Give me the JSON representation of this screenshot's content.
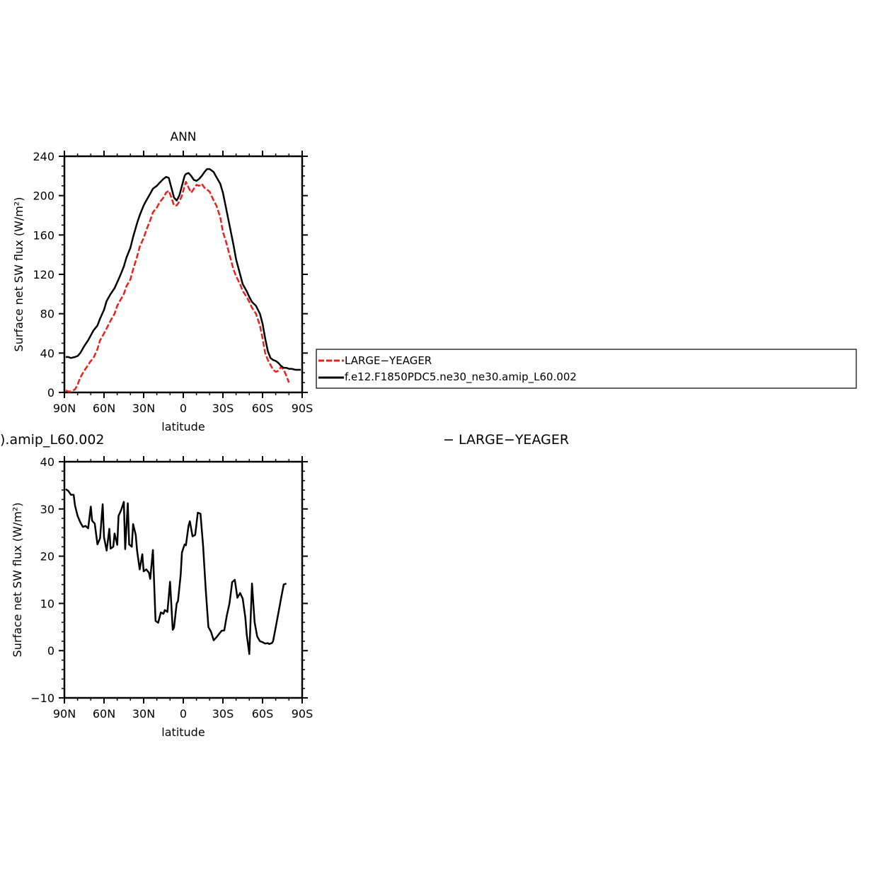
{
  "chart_data": [
    {
      "type": "line",
      "title": "ANN",
      "xlabel": "latitude",
      "ylabel": "Surface net SW flux (W/m²)",
      "xlim": [
        90,
        -90
      ],
      "ylim": [
        0,
        240
      ],
      "x_ticks": [
        90,
        60,
        30,
        0,
        -30,
        -60,
        -90
      ],
      "x_tick_labels": [
        "90N",
        "60N",
        "30N",
        "0",
        "30S",
        "60S",
        "90S"
      ],
      "y_ticks": [
        0,
        40,
        80,
        120,
        160,
        200,
        240
      ],
      "y_tick_labels": [
        "0",
        "40",
        "80",
        "120",
        "160",
        "200",
        "240"
      ],
      "legend": {
        "placement": "right",
        "entries": [
          "LARGE−YEAGER",
          "f.e12.F1850PDC5.ne30_ne30.amip_L60.002"
        ]
      },
      "series": [
        {
          "name": "LARGE−YEAGER",
          "color": "#e8201e",
          "dash": true,
          "x": [
            89,
            87,
            85,
            82,
            80,
            78,
            75,
            72,
            70,
            68,
            65,
            63,
            60,
            58,
            55,
            52,
            50,
            48,
            45,
            43,
            40,
            38,
            35,
            33,
            30,
            28,
            25,
            23,
            20,
            18,
            15,
            13,
            11,
            9,
            7,
            5,
            3,
            1,
            -1,
            -2,
            -4,
            -6,
            -8,
            -10,
            -12,
            -14,
            -16,
            -18,
            -20,
            -23,
            -25,
            -28,
            -30,
            -32,
            -35,
            -38,
            -40,
            -43,
            -45,
            -48,
            -50,
            -52,
            -55,
            -58,
            -60,
            -62,
            -64,
            -66,
            -68,
            -70,
            -72,
            -74,
            -76,
            -78,
            -80
          ],
          "y": [
            2,
            1,
            1,
            3,
            8,
            15,
            22,
            28,
            32,
            35,
            44,
            53,
            60,
            65,
            73,
            80,
            88,
            93,
            100,
            108,
            115,
            125,
            138,
            148,
            157,
            165,
            175,
            183,
            188,
            193,
            198,
            203,
            205,
            198,
            190,
            190,
            194,
            200,
            210,
            214,
            208,
            203,
            207,
            211,
            210,
            212,
            208,
            206,
            204,
            195,
            190,
            178,
            163,
            155,
            140,
            125,
            118,
            110,
            103,
            97,
            92,
            86,
            80,
            68,
            55,
            40,
            33,
            28,
            23,
            21,
            22,
            26,
            23,
            17,
            10
          ]
        },
        {
          "name": "f.e12.F1850PDC5.ne30_ne30.amip_L60.002",
          "color": "#000000",
          "dash": false,
          "x": [
            89,
            87,
            85,
            82,
            80,
            78,
            75,
            72,
            70,
            68,
            65,
            63,
            60,
            58,
            55,
            52,
            50,
            48,
            45,
            43,
            40,
            38,
            35,
            33,
            30,
            28,
            25,
            23,
            20,
            18,
            15,
            13,
            11,
            9,
            7,
            5,
            3,
            1,
            -1,
            -2,
            -4,
            -6,
            -8,
            -10,
            -12,
            -14,
            -16,
            -18,
            -20,
            -23,
            -25,
            -28,
            -30,
            -32,
            -35,
            -38,
            -40,
            -43,
            -45,
            -48,
            -50,
            -52,
            -55,
            -58,
            -60,
            -62,
            -64,
            -66,
            -68,
            -70,
            -72,
            -74,
            -76,
            -78,
            -80,
            -82,
            -85,
            -89
          ],
          "y": [
            36,
            36,
            35,
            36,
            37,
            40,
            47,
            53,
            58,
            63,
            68,
            75,
            84,
            93,
            100,
            106,
            112,
            118,
            128,
            137,
            147,
            158,
            172,
            180,
            190,
            195,
            202,
            207,
            210,
            213,
            217,
            219,
            218,
            208,
            198,
            195,
            200,
            210,
            220,
            222,
            223,
            220,
            216,
            215,
            217,
            220,
            224,
            227,
            227,
            224,
            219,
            212,
            203,
            190,
            170,
            150,
            135,
            120,
            110,
            103,
            97,
            92,
            88,
            80,
            70,
            55,
            42,
            35,
            33,
            32,
            30,
            27,
            25,
            25,
            24,
            24,
            23,
            23
          ]
        }
      ]
    },
    {
      "type": "line",
      "title": ").amip_L60.002",
      "subtitle": "− LARGE−YEAGER",
      "xlabel": "latitude",
      "ylabel": "Surface net SW flux (W/m²)",
      "xlim": [
        90,
        -90
      ],
      "ylim": [
        -10,
        40
      ],
      "x_ticks": [
        90,
        60,
        30,
        0,
        -30,
        -60,
        -90
      ],
      "x_tick_labels": [
        "90N",
        "60N",
        "30N",
        "0",
        "30S",
        "60S",
        "90S"
      ],
      "y_ticks": [
        -10,
        0,
        10,
        20,
        30,
        40
      ],
      "y_tick_labels": [
        "−10",
        "0",
        "10",
        "20",
        "30",
        "40"
      ],
      "series": [
        {
          "color": "#000000",
          "dash": false,
          "x": [
            89,
            87,
            85,
            83,
            82,
            80,
            78,
            76,
            74,
            72,
            70,
            69,
            67,
            65,
            63,
            61,
            60,
            58,
            56,
            55,
            53,
            52,
            50,
            49,
            47,
            45,
            44,
            42,
            41,
            39,
            38,
            36,
            35,
            33,
            31,
            30,
            28,
            26,
            25,
            23,
            21,
            19,
            17,
            15,
            14,
            12,
            10,
            8,
            7,
            5,
            4,
            2,
            1,
            -1,
            -2,
            -4,
            -5,
            -7,
            -9,
            -11,
            -13,
            -15,
            -17,
            -19,
            -21,
            -23,
            -25,
            -27,
            -29,
            -31,
            -33,
            -35,
            -37,
            -39,
            -41,
            -43,
            -45,
            -47,
            -48,
            -50,
            -52,
            -54,
            -56,
            -58,
            -60,
            -62,
            -64,
            -65,
            -66,
            -67,
            -68,
            -70,
            -72,
            -74,
            -76,
            -78
          ],
          "y": [
            34.2,
            33.8,
            33.0,
            33.0,
            30.8,
            28.5,
            27.2,
            26.2,
            26.4,
            25.9,
            30.5,
            27.5,
            26.9,
            22.5,
            23.8,
            31.0,
            24.0,
            21.2,
            25.8,
            21.6,
            22.0,
            24.8,
            22.4,
            28.5,
            29.8,
            31.5,
            21.5,
            31.2,
            22.5,
            22.0,
            26.8,
            24.5,
            21.2,
            17.2,
            20.4,
            16.8,
            17.2,
            16.5,
            15.2,
            21.3,
            6.3,
            5.9,
            8.1,
            7.8,
            8.6,
            8.2,
            14.6,
            4.4,
            4.9,
            10.0,
            10.5,
            16.0,
            20.8,
            22.5,
            22.3,
            26.5,
            27.4,
            24.2,
            24.5,
            29.2,
            29.0,
            22.2,
            13.0,
            5.0,
            4.0,
            2.2,
            2.8,
            3.5,
            4.2,
            4.3,
            7.5,
            10.0,
            14.5,
            15.0,
            11.2,
            12.2,
            11.0,
            7.0,
            3.5,
            -0.7,
            14.2,
            6.0,
            3.0,
            2.0,
            1.8,
            1.5,
            1.6,
            1.4,
            1.5,
            1.6,
            2.0,
            5.0,
            8.0,
            11.0,
            14.0,
            14.2
          ]
        }
      ]
    }
  ]
}
